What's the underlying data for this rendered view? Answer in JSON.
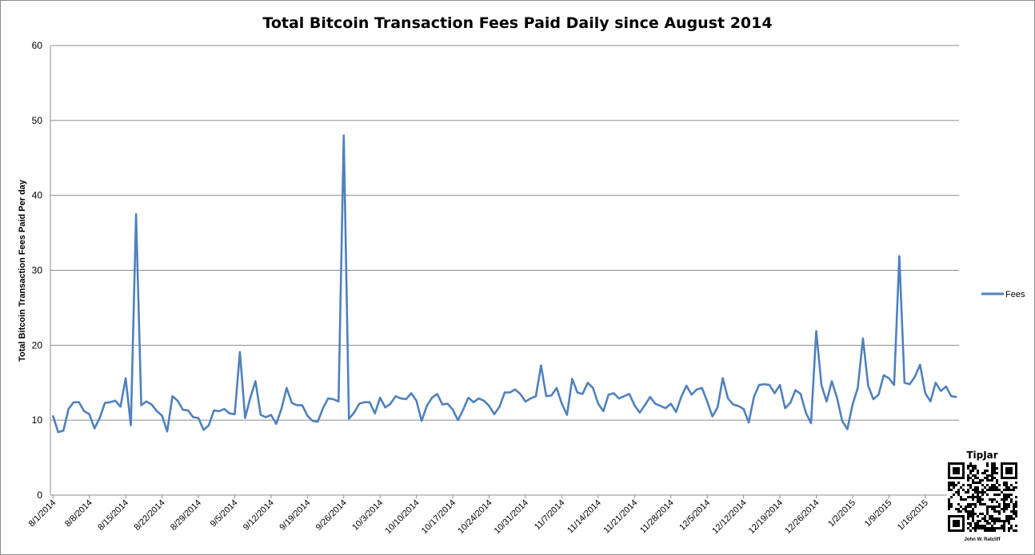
{
  "chart_data": {
    "type": "line",
    "title": "Total Bitcoin Transaction Fees Paid Daily since August 2014",
    "xlabel": "",
    "ylabel": "Total Bitcoin Transaction Fees Paid Per day",
    "ylim": [
      0,
      60
    ],
    "yticks": [
      0,
      10,
      20,
      30,
      40,
      50,
      60
    ],
    "grid": "horizontal",
    "legend_position": "right",
    "x_start": "8/1/2014",
    "x_end": "1/21/2015",
    "xtick_labels": [
      "8/1/2014",
      "8/8/2014",
      "8/15/2014",
      "8/22/2014",
      "8/29/2014",
      "9/5/2014",
      "9/12/2014",
      "9/19/2014",
      "9/26/2014",
      "10/3/2014",
      "10/10/2014",
      "10/17/2014",
      "10/24/2014",
      "10/31/2014",
      "11/7/2014",
      "11/14/2014",
      "11/21/2014",
      "11/28/2014",
      "12/5/2014",
      "12/12/2014",
      "12/19/2014",
      "12/26/2014",
      "1/2/2015",
      "1/9/2015",
      "1/16/2015"
    ],
    "series": [
      {
        "name": "Fees",
        "color": "#4f81bd",
        "values": [
          10.6,
          8.4,
          8.6,
          11.5,
          12.4,
          12.4,
          11.2,
          10.8,
          8.9,
          10.3,
          12.3,
          12.4,
          12.6,
          11.8,
          15.6,
          9.3,
          37.5,
          12.0,
          12.5,
          12.1,
          11.2,
          10.6,
          8.5,
          13.2,
          12.6,
          11.4,
          11.3,
          10.4,
          10.3,
          8.7,
          9.3,
          11.3,
          11.2,
          11.5,
          10.9,
          10.8,
          19.1,
          10.3,
          13.0,
          15.2,
          10.7,
          10.4,
          10.7,
          9.5,
          11.5,
          14.3,
          12.3,
          12.0,
          12.0,
          10.6,
          9.9,
          9.8,
          11.6,
          12.9,
          12.8,
          12.5,
          48.0,
          10.2,
          11.0,
          12.2,
          12.4,
          12.4,
          10.9,
          13.0,
          11.7,
          12.2,
          13.2,
          12.9,
          12.8,
          13.6,
          12.6,
          9.9,
          11.9,
          13.0,
          13.5,
          12.1,
          12.2,
          11.4,
          10.0,
          11.4,
          13.0,
          12.4,
          12.9,
          12.6,
          11.9,
          10.8,
          11.8,
          13.7,
          13.7,
          14.1,
          13.5,
          12.5,
          12.9,
          13.2,
          17.3,
          13.2,
          13.3,
          14.3,
          12.2,
          10.7,
          15.5,
          13.7,
          13.5,
          15.0,
          14.3,
          12.2,
          11.2,
          13.4,
          13.6,
          12.9,
          13.2,
          13.5,
          12.0,
          11.0,
          12.0,
          13.1,
          12.2,
          11.9,
          11.6,
          12.2,
          11.1,
          13.1,
          14.6,
          13.4,
          14.1,
          14.3,
          12.5,
          10.5,
          11.7,
          15.6,
          12.9,
          12.1,
          11.9,
          11.5,
          9.7,
          13.1,
          14.7,
          14.8,
          14.7,
          13.6,
          14.7,
          11.6,
          12.3,
          14.0,
          13.5,
          11.0,
          9.6,
          21.9,
          14.7,
          12.5,
          15.2,
          13.0,
          9.9,
          8.8,
          12.1,
          14.3,
          20.9,
          14.6,
          12.8,
          13.4,
          16.0,
          15.6,
          14.7,
          31.9,
          15.0,
          14.8,
          15.8,
          17.4,
          13.6,
          12.5,
          15.0,
          13.9,
          14.5,
          13.2,
          13.1
        ]
      }
    ]
  },
  "legend": {
    "label": "Fees"
  },
  "tipjar": {
    "title": "TipJar",
    "name": "John W. Ratcliff"
  }
}
